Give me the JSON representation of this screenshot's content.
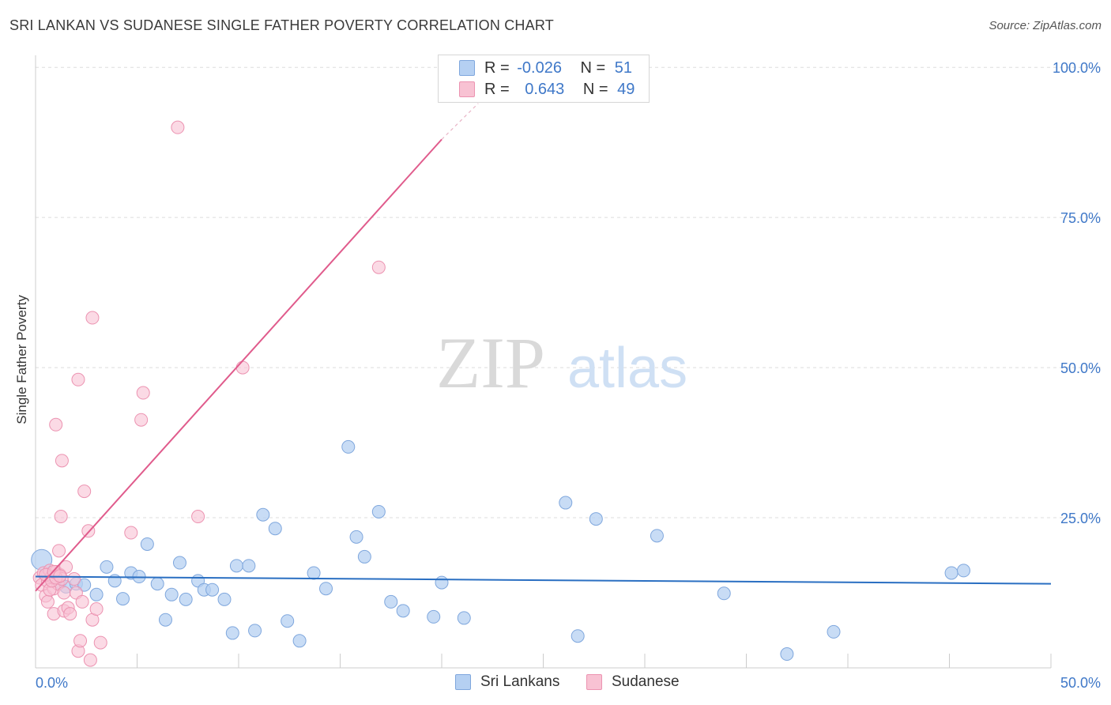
{
  "header": {
    "title": "SRI LANKAN VS SUDANESE SINGLE FATHER POVERTY CORRELATION CHART",
    "source": "Source: ZipAtlas.com"
  },
  "legend": {
    "series1": {
      "r_label": "R =",
      "r_value": "-0.026",
      "n_label": "N =",
      "n_value": "51"
    },
    "series2": {
      "r_label": "R =",
      "r_value": "0.643",
      "n_label": "N =",
      "n_value": "49"
    }
  },
  "bottom_legend": {
    "item1": "Sri Lankans",
    "item2": "Sudanese"
  },
  "watermark": {
    "part1": "ZIP",
    "part2": "atlas"
  },
  "colors": {
    "blue_fill": "#b5d0f2",
    "blue_stroke": "#7fa7dd",
    "blue_line": "#2a6fc2",
    "pink_fill": "#f8c2d3",
    "pink_stroke": "#ec93b1",
    "pink_line": "#e05b8c",
    "axis_label": "#3f78c8",
    "grid": "#dddddd"
  },
  "chart_data": {
    "type": "scatter",
    "title": "SRI LANKAN VS SUDANESE SINGLE FATHER POVERTY CORRELATION CHART",
    "xlabel": "",
    "ylabel": "Single Father Poverty",
    "xlim": [
      0,
      50
    ],
    "ylim": [
      0,
      102
    ],
    "x_tick_labels": [
      "0.0%",
      "50.0%"
    ],
    "y_ticks": [
      25,
      50,
      75,
      100
    ],
    "y_tick_labels": [
      "25.0%",
      "50.0%",
      "75.0%",
      "100.0%"
    ],
    "grid": true,
    "series": [
      {
        "name": "Sri Lankans",
        "r": -0.026,
        "n": 51,
        "trend": {
          "x": [
            0,
            50
          ],
          "y": [
            15.2,
            14.0
          ]
        },
        "points": [
          [
            0.3,
            18.0
          ],
          [
            0.6,
            15.5
          ],
          [
            0.9,
            15.0
          ],
          [
            1.2,
            14.2
          ],
          [
            1.5,
            13.5
          ],
          [
            2.0,
            14.0
          ],
          [
            2.4,
            13.8
          ],
          [
            3.0,
            12.2
          ],
          [
            3.5,
            16.8
          ],
          [
            3.9,
            14.5
          ],
          [
            4.3,
            11.5
          ],
          [
            4.7,
            15.8
          ],
          [
            5.1,
            15.2
          ],
          [
            5.5,
            20.6
          ],
          [
            6.0,
            14.0
          ],
          [
            6.4,
            8.0
          ],
          [
            6.7,
            12.2
          ],
          [
            7.1,
            17.5
          ],
          [
            7.4,
            11.4
          ],
          [
            8.0,
            14.5
          ],
          [
            8.3,
            13.0
          ],
          [
            8.7,
            13.0
          ],
          [
            9.3,
            11.4
          ],
          [
            9.7,
            5.8
          ],
          [
            9.9,
            17.0
          ],
          [
            10.5,
            17.0
          ],
          [
            10.8,
            6.2
          ],
          [
            11.2,
            25.5
          ],
          [
            11.8,
            23.2
          ],
          [
            12.4,
            7.8
          ],
          [
            13.0,
            4.5
          ],
          [
            13.7,
            15.8
          ],
          [
            14.3,
            13.2
          ],
          [
            15.4,
            36.8
          ],
          [
            15.8,
            21.8
          ],
          [
            16.2,
            18.5
          ],
          [
            16.9,
            26.0
          ],
          [
            17.5,
            11.0
          ],
          [
            18.1,
            9.5
          ],
          [
            19.6,
            8.5
          ],
          [
            20.0,
            14.2
          ],
          [
            21.1,
            8.3
          ],
          [
            26.1,
            27.5
          ],
          [
            26.7,
            5.3
          ],
          [
            27.6,
            24.8
          ],
          [
            30.6,
            22.0
          ],
          [
            33.9,
            12.4
          ],
          [
            37.0,
            2.3
          ],
          [
            39.3,
            6.0
          ],
          [
            45.1,
            15.8
          ],
          [
            45.7,
            16.2
          ]
        ]
      },
      {
        "name": "Sudanese",
        "r": 0.643,
        "n": 49,
        "trend": {
          "x": [
            0,
            20.0
          ],
          "y": [
            12.8,
            88.0
          ]
        },
        "trend_extension": {
          "x": [
            20.0,
            21.8
          ],
          "y": [
            88.0,
            94.0
          ]
        },
        "points": [
          [
            0.2,
            15.0
          ],
          [
            0.3,
            13.8
          ],
          [
            0.4,
            15.8
          ],
          [
            0.5,
            12.0
          ],
          [
            0.6,
            14.4
          ],
          [
            0.7,
            16.2
          ],
          [
            0.8,
            15.2
          ],
          [
            0.9,
            13.2
          ],
          [
            1.0,
            16.0
          ],
          [
            1.1,
            14.0
          ],
          [
            1.2,
            15.5
          ],
          [
            1.3,
            14.8
          ],
          [
            1.4,
            12.5
          ],
          [
            0.6,
            11.0
          ],
          [
            0.9,
            9.0
          ],
          [
            1.0,
            40.5
          ],
          [
            1.15,
            19.5
          ],
          [
            1.25,
            25.2
          ],
          [
            1.3,
            34.5
          ],
          [
            1.4,
            9.5
          ],
          [
            1.5,
            16.8
          ],
          [
            1.6,
            10.0
          ],
          [
            1.7,
            9.0
          ],
          [
            1.9,
            14.8
          ],
          [
            2.0,
            12.5
          ],
          [
            2.1,
            2.8
          ],
          [
            2.1,
            48.0
          ],
          [
            2.2,
            4.5
          ],
          [
            2.3,
            11.0
          ],
          [
            2.4,
            29.4
          ],
          [
            2.6,
            22.8
          ],
          [
            2.7,
            1.3
          ],
          [
            2.8,
            8.0
          ],
          [
            2.8,
            58.3
          ],
          [
            3.0,
            9.8
          ],
          [
            3.2,
            4.2
          ],
          [
            4.7,
            22.5
          ],
          [
            5.3,
            45.8
          ],
          [
            5.2,
            41.3
          ],
          [
            7.0,
            90.0
          ],
          [
            8.0,
            25.2
          ],
          [
            10.2,
            50.0
          ],
          [
            16.9,
            66.7
          ],
          [
            0.5,
            15.5
          ],
          [
            0.7,
            13.0
          ],
          [
            0.8,
            14.5
          ],
          [
            1.0,
            15.0
          ],
          [
            0.9,
            16.0
          ],
          [
            1.2,
            15.3
          ]
        ]
      }
    ]
  }
}
